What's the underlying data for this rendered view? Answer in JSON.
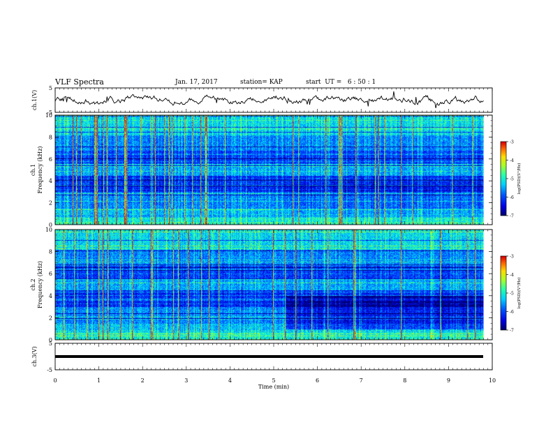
{
  "header": {
    "title": "VLF Spectra",
    "date": "Jan. 17, 2017",
    "station": "station= KAP",
    "start": "start  UT =   6 : 50 : 1"
  },
  "chart_data": [
    {
      "type": "line",
      "panel": "ch1-waveform",
      "ylabel": "ch.1(V)",
      "ylim": [
        -5,
        5
      ],
      "yticks": [
        "5",
        "-5"
      ],
      "xlim": [
        0,
        10
      ]
    },
    {
      "type": "heatmap",
      "panel": "ch1-spectrogram",
      "ylabel": "ch.1\nFrequency  (kHz)",
      "ylabel_line1": "ch.1",
      "ylabel_line2": "Frequency  (kHz)",
      "ylim": [
        0,
        10
      ],
      "yticks": [
        "0",
        "2",
        "4",
        "6",
        "8",
        "10"
      ],
      "xlim": [
        0,
        9.8
      ],
      "colorbar": {
        "label": "log(PSD)(V²/Hz)",
        "range": [
          -7,
          -3
        ],
        "ticks": [
          "-3",
          "-4",
          "-5",
          "-6",
          "-7"
        ]
      }
    },
    {
      "type": "heatmap",
      "panel": "ch2-spectrogram",
      "ylabel": "ch.2\nFrequency  (kHz)",
      "ylabel_line1": "ch.2",
      "ylabel_line2": "Frequency  (kHz)",
      "ylim": [
        0,
        10
      ],
      "yticks": [
        "0",
        "2",
        "4",
        "6",
        "8",
        "10"
      ],
      "xlim": [
        0,
        9.8
      ],
      "colorbar": {
        "label": "log(PSD)(V²/Hz)",
        "range": [
          -7,
          -3
        ],
        "ticks": [
          "-3",
          "-4",
          "-5",
          "-6",
          "-7"
        ]
      }
    },
    {
      "type": "line",
      "panel": "ch3-waveform",
      "ylabel": "ch.3(V)",
      "ylim": [
        -5,
        5
      ],
      "yticks": [
        "5",
        "-5"
      ],
      "xlim": [
        0,
        10
      ],
      "level": 0
    }
  ],
  "xaxis": {
    "label": "Time  (min)",
    "ticks": [
      "0",
      "1",
      "2",
      "3",
      "4",
      "5",
      "6",
      "7",
      "8",
      "9",
      "10"
    ]
  },
  "colors": {
    "low": "#00008b",
    "mid": "#00e0ff",
    "high": "#ff0000"
  }
}
